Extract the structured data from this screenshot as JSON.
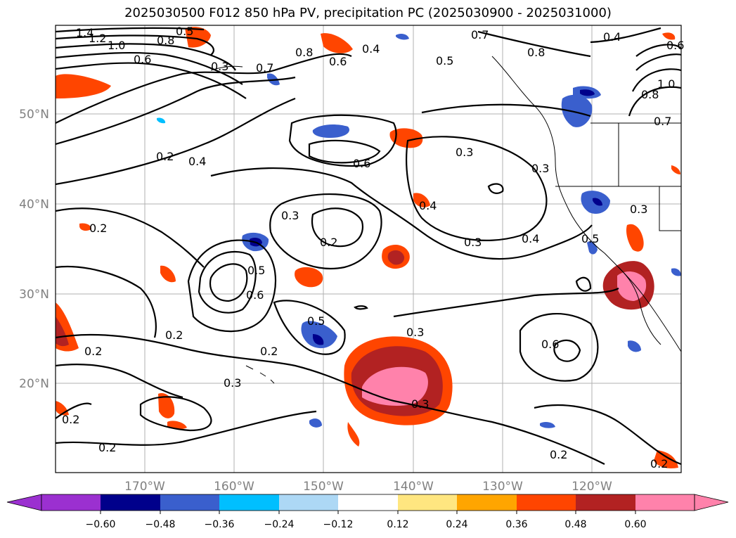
{
  "title": "2025030500 F012 850 hPa PV, precipitation PC (2025030900 - 2025031000)",
  "lat_labels": [
    "50°N",
    "40°N",
    "30°N",
    "20°N"
  ],
  "lon_labels": [
    "170°W",
    "160°W",
    "150°W",
    "140°W",
    "130°W",
    "120°W"
  ],
  "colorbar": {
    "ticks": [
      "−0.60",
      "−0.48",
      "−0.36",
      "−0.24",
      "−0.12",
      "0.12",
      "0.24",
      "0.36",
      "0.48",
      "0.60"
    ],
    "colors": [
      "#9b30d0",
      "#00008b",
      "#3a5fcd",
      "#00bfff",
      "#add8f5",
      "#ffffff",
      "#ffe680",
      "#ffa500",
      "#ff4500",
      "#b22222",
      "#ff82ab"
    ]
  },
  "contour_labels": [
    "1.4",
    "1.2",
    "1.0",
    "0.8",
    "0.6",
    "0.3",
    "0.7",
    "0.8",
    "0.5",
    "0.4",
    "0.6",
    "0.5",
    "0.7",
    "0.8",
    "0.4",
    "0.6",
    "0.2",
    "0.4",
    "0.6",
    "0.3",
    "0.3",
    "0.4",
    "0.3",
    "0.2",
    "0.3",
    "0.4",
    "0.5",
    "0.3",
    "0.5",
    "0.6",
    "0.2",
    "0.5",
    "0.2",
    "0.2",
    "0.3",
    "0.3",
    "0.6",
    "0.2",
    "0.2",
    "0.2",
    "0.2",
    "0.8",
    "1.0",
    "0.7",
    "0.3",
    "0.2"
  ]
}
